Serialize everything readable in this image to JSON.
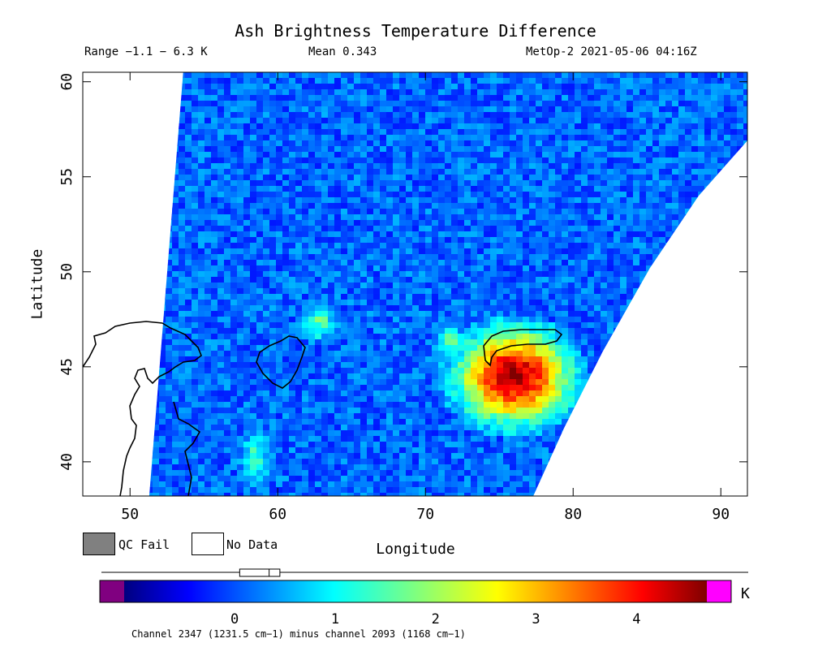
{
  "chart_data": {
    "type": "heatmap",
    "title": "Ash Brightness Temperature Difference",
    "range_text": "Range −1.1 − 6.3 K",
    "mean_text": "Mean 0.343",
    "satellite_time": "MetOp-2 2021-05-06 04:16Z",
    "xlabel": "Longitude",
    "ylabel": "Latitude",
    "xlim": [
      46.8,
      91.8
    ],
    "ylim": [
      38.2,
      60.5
    ],
    "x_ticks": [
      "50",
      "60",
      "70",
      "80",
      "90"
    ],
    "y_ticks": [
      "40",
      "45",
      "50",
      "55",
      "60"
    ],
    "swath": {
      "left_edge": [
        [
          53.6,
          60.5
        ],
        [
          51.3,
          38.2
        ]
      ],
      "right_edge_points": [
        [
          91.8,
          60.5
        ],
        [
          91.8,
          56.9
        ],
        [
          88.5,
          54.0
        ],
        [
          85.2,
          50.2
        ],
        [
          82.0,
          45.8
        ],
        [
          79.4,
          41.8
        ],
        [
          77.3,
          38.2
        ]
      ]
    },
    "features": [
      {
        "lon": 76.0,
        "lat": 44.5,
        "peak_k": 4.5,
        "radius_lon": 4.0,
        "radius_lat": 2.6
      },
      {
        "lon": 62.8,
        "lat": 47.3,
        "peak_k": 1.6,
        "radius_lon": 1.2,
        "radius_lat": 1.0
      },
      {
        "lon": 58.5,
        "lat": 40.2,
        "peak_k": 1.4,
        "radius_lon": 1.1,
        "radius_lat": 1.5
      },
      {
        "lon": 71.6,
        "lat": 46.3,
        "peak_k": 1.8,
        "radius_lon": 1.0,
        "radius_lat": 0.8
      }
    ],
    "background_k": 0.2,
    "colorbar": {
      "min": -1.1,
      "max": 4.7,
      "ticks": [
        "0",
        "1",
        "2",
        "3",
        "4"
      ],
      "unit": "K",
      "under_color": "#800080",
      "over_color": "#ff00ff",
      "mean": 0.343,
      "box_range": [
        0.05,
        0.45
      ]
    },
    "legend": [
      {
        "label": "QC Fail",
        "color": "#808080"
      },
      {
        "label": "No Data",
        "color": "#ffffff"
      }
    ],
    "footnote": "Channel 2347 (1231.5 cm−1) minus channel 2093 (1168 cm−1)"
  }
}
